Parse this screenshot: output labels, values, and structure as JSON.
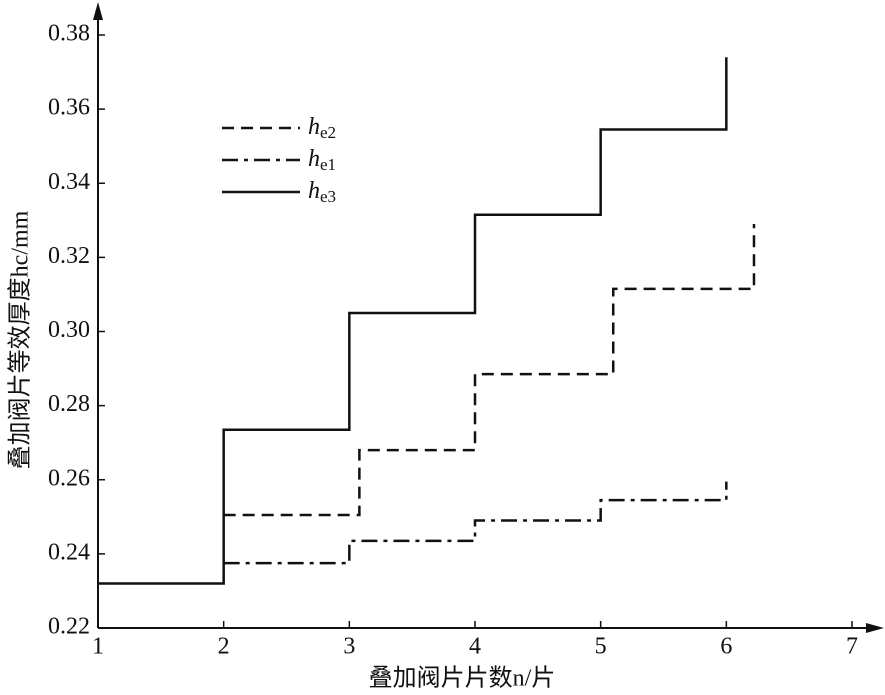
{
  "chart_data": {
    "type": "line",
    "x_label": "叠加阀片片数n/片",
    "y_label": "叠加阀片等效厚度hc/mm",
    "xlim": [
      1,
      7
    ],
    "ylim": [
      0.22,
      0.38
    ],
    "xticks": [
      1,
      2,
      3,
      4,
      5,
      6,
      7
    ],
    "yticks": [
      0.22,
      0.24,
      0.26,
      0.28,
      {
        "value": 0.3,
        "label": "0.30"
      },
      0.32,
      0.34,
      0.36,
      0.38
    ],
    "grid": false,
    "series": [
      {
        "name": "he2",
        "color": "#111111",
        "style": "dashed",
        "x": [
          2,
          3.08,
          3.08,
          4,
          4,
          5.1,
          5.1,
          6.22,
          6.22
        ],
        "values": [
          0.2505,
          0.2505,
          0.268,
          0.268,
          0.2885,
          0.2885,
          0.3115,
          0.3115,
          0.329
        ]
      },
      {
        "name": "he1",
        "color": "#111111",
        "style": "dashdot",
        "x": [
          2,
          3,
          3,
          4,
          4,
          5,
          5,
          6,
          6
        ],
        "values": [
          0.2375,
          0.2375,
          0.2435,
          0.2435,
          0.249,
          0.249,
          0.2545,
          0.2545,
          0.2595
        ]
      },
      {
        "name": "he3",
        "color": "#111111",
        "style": "solid",
        "x": [
          1,
          2,
          2,
          3,
          3,
          4,
          4,
          5,
          5,
          6,
          6
        ],
        "values": [
          0.232,
          0.232,
          0.2735,
          0.2735,
          0.305,
          0.305,
          0.3315,
          0.3315,
          0.3545,
          0.3545,
          0.374
        ]
      }
    ]
  }
}
